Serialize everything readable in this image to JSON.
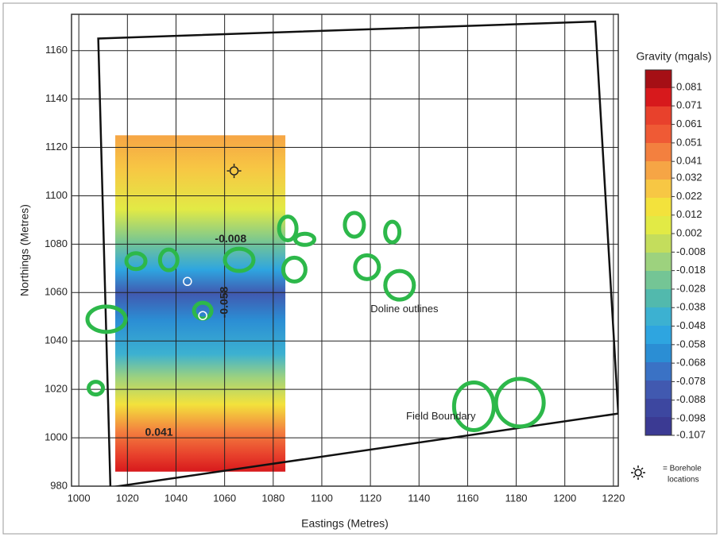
{
  "chart_data": {
    "type": "contour",
    "xlabel": "Eastings (Metres)",
    "ylabel": "Northings (Metres)",
    "xlim": [
      997,
      1222
    ],
    "ylim": [
      980,
      1175
    ],
    "xticks": [
      1000,
      1020,
      1040,
      1060,
      1080,
      1100,
      1120,
      1140,
      1160,
      1180,
      1200,
      1220
    ],
    "yticks": [
      980,
      1000,
      1020,
      1040,
      1060,
      1080,
      1100,
      1120,
      1140,
      1160
    ],
    "grid": true,
    "data_extent": {
      "x": [
        1015,
        1085
      ],
      "y": [
        986,
        1125
      ]
    },
    "colorbar": {
      "title": "Gravity (mgals)",
      "ticks": [
        0.081,
        0.071,
        0.061,
        0.051,
        0.041,
        0.032,
        0.022,
        0.012,
        0.002,
        -0.008,
        -0.018,
        -0.028,
        -0.038,
        -0.048,
        -0.058,
        -0.068,
        -0.078,
        -0.088,
        -0.098,
        -0.107
      ],
      "colors": [
        "#a50f15",
        "#d7191c",
        "#e8412c",
        "#ef5a35",
        "#f3803f",
        "#f6a545",
        "#f7c744",
        "#f3e23c",
        "#e2ea45",
        "#c4dd5c",
        "#9dd27e",
        "#74c595",
        "#52b9ad",
        "#3cb1d1",
        "#2ea5e0",
        "#2b8ed4",
        "#3a72c5",
        "#4159b0",
        "#3d47a0",
        "#3b3a93"
      ]
    },
    "field_boundary": {
      "x": [
        1008,
        1212.5,
        1222,
        1013
      ],
      "y": [
        1165,
        1172,
        1010,
        979.5
      ],
      "color": "#111111"
    },
    "dolines": {
      "color": "#2db84a",
      "x": [
        1007,
        1011.4,
        1023.5,
        1037,
        1051,
        1066,
        1086,
        1093,
        1088.7,
        1113.4,
        1118.6,
        1129,
        1132,
        1162.6,
        1181.5
      ],
      "y": [
        1020.5,
        1049,
        1073,
        1073.5,
        1052.5,
        1073.5,
        1086.5,
        1082,
        1069.5,
        1088,
        1070.5,
        1085,
        1063,
        1013,
        1014.5
      ]
    },
    "boreholes": {
      "x": [
        1063.9,
        1044.7,
        1051
      ],
      "y": [
        1110.3,
        1064.6,
        1050.5
      ]
    },
    "annotations": [
      {
        "text": "Doline outlines",
        "x": 1134,
        "y": 1053
      },
      {
        "text": "Field Boundary",
        "x": 1149,
        "y": 1008.7
      },
      {
        "text": "0.041",
        "x": 1033,
        "y": 1002
      },
      {
        "text": "-0.008",
        "x": 1062.5,
        "y": 1082
      },
      {
        "text": "-0.058",
        "x": 1060,
        "y": 1056
      }
    ],
    "legend": {
      "lines": [
        "= Borehole",
        "locations"
      ]
    }
  }
}
